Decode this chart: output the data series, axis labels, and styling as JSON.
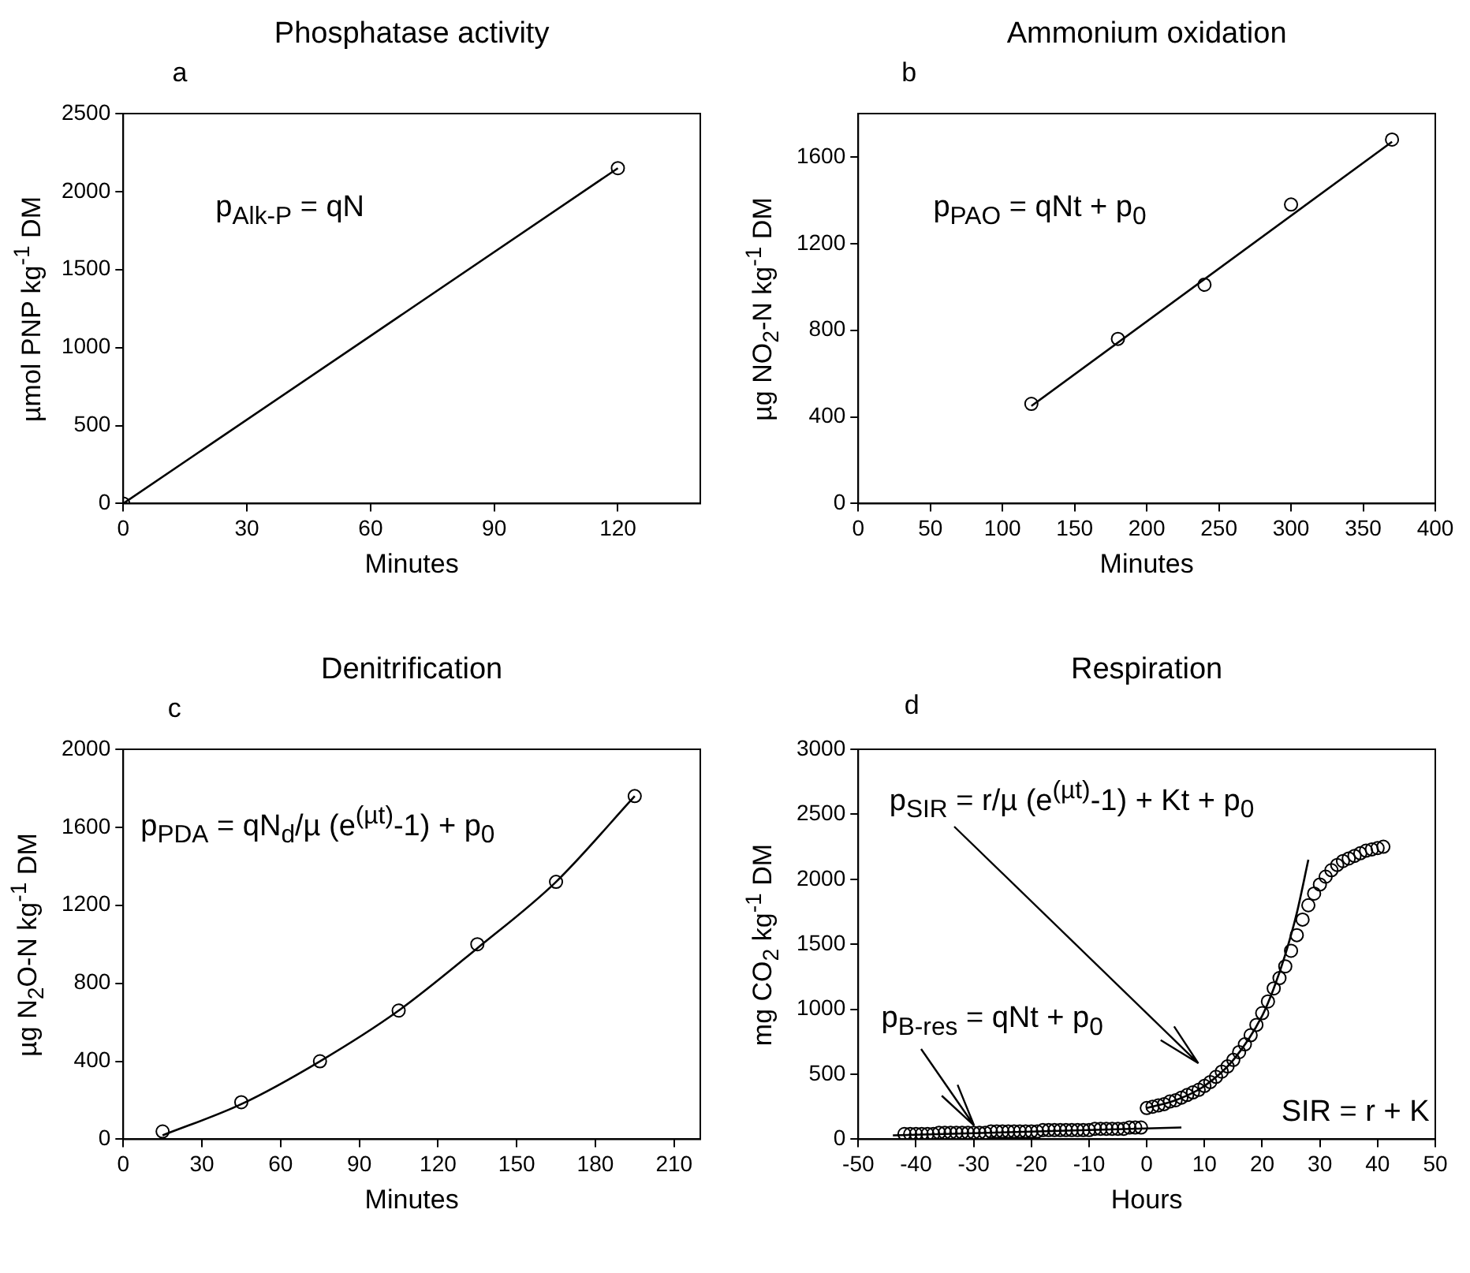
{
  "chart_data": [
    {
      "type": "scatter",
      "title": "Phosphatase activity",
      "xlabel": "Minutes",
      "ylabel": "µmol PNP kg$^{-1}$ DM",
      "annotations": [
        "a",
        "p$_{Alk-P}$ = qN"
      ],
      "xlim": [
        0,
        140
      ],
      "xticks": [
        0,
        30,
        60,
        90,
        120
      ],
      "ylim": [
        0,
        2500
      ],
      "yticks": [
        0,
        500,
        1000,
        1500,
        2000,
        2500
      ],
      "grid": false,
      "legend": false,
      "marker": "circle",
      "series": [
        {
          "type": "scatter",
          "color": "#000000",
          "x": [
            0,
            120
          ],
          "values": [
            0,
            2150
          ]
        },
        {
          "type": "line",
          "marker": "none",
          "color": "#000000",
          "x": [
            0,
            120
          ],
          "values": [
            0,
            2150
          ]
        }
      ]
    },
    {
      "type": "scatter",
      "title": "Ammonium oxidation",
      "xlabel": "Minutes",
      "ylabel": "µg NO$_{2}$-N kg$^{-1}$ DM",
      "annotations": [
        "b",
        "p$_{PAO}$ =  qNt + p$_{0}$"
      ],
      "xlim": [
        0,
        400
      ],
      "xticks": [
        0,
        50,
        100,
        150,
        200,
        250,
        300,
        350,
        400
      ],
      "ylim": [
        0,
        1800
      ],
      "yticks": [
        0,
        400,
        800,
        1200,
        1600
      ],
      "grid": false,
      "legend": false,
      "marker": "circle",
      "series": [
        {
          "type": "scatter",
          "color": "#000000",
          "x": [
            120,
            180,
            240,
            300,
            370
          ],
          "values": [
            460,
            760,
            1010,
            1380,
            1680
          ]
        },
        {
          "type": "line",
          "marker": "none",
          "color": "#000000",
          "x": [
            120,
            370
          ],
          "values": [
            450,
            1670
          ]
        }
      ]
    },
    {
      "type": "scatter",
      "title": "Denitrification",
      "xlabel": "Minutes",
      "ylabel": "µg N$_{2}$O-N kg$^{-1}$ DM",
      "annotations": [
        "c",
        "p$_{PDA}$ = qN$_{d}$/µ (e$^{(µt)}$-1) + p$_{0}$"
      ],
      "xlim": [
        0,
        220
      ],
      "xticks": [
        0,
        30,
        60,
        90,
        120,
        150,
        180,
        210
      ],
      "ylim": [
        0,
        2000
      ],
      "yticks": [
        0,
        400,
        800,
        1200,
        1600,
        2000
      ],
      "grid": false,
      "legend": false,
      "marker": "circle",
      "series": [
        {
          "type": "scatter",
          "color": "#000000",
          "x": [
            15,
            45,
            75,
            105,
            135,
            165,
            195
          ],
          "values": [
            40,
            190,
            400,
            660,
            1000,
            1320,
            1760
          ]
        },
        {
          "type": "line",
          "marker": "none",
          "color": "#000000",
          "x": [
            15,
            45,
            75,
            105,
            135,
            165,
            195
          ],
          "values": [
            20,
            180,
            400,
            660,
            980,
            1320,
            1760
          ]
        }
      ]
    },
    {
      "type": "scatter",
      "title": "Respiration",
      "xlabel": "Hours",
      "ylabel": "mg CO$_{2}$ kg$^{-1}$ DM",
      "annotations": [
        "d",
        "p$_{SIR}$ = r/µ (e$^{(µt)}$-1) + Kt + p$_{0}$",
        {
          "text": "p$_{B-res}$ =  qNt + p$_{0}$",
          "x": -30,
          "y": 100
        },
        "SIR = r + K"
      ],
      "xlim": [
        -50,
        50
      ],
      "xticks": [
        -50,
        -40,
        -30,
        -20,
        -10,
        0,
        10,
        20,
        30,
        40,
        50
      ],
      "ylim": [
        0,
        3000
      ],
      "yticks": [
        0,
        500,
        1000,
        1500,
        2000,
        2500,
        3000
      ],
      "grid": false,
      "legend": false,
      "marker": "circle",
      "series": [
        {
          "type": "scatter",
          "color": "#000000",
          "x": [
            -42,
            -41,
            -40,
            -39,
            -38,
            -37,
            -36,
            -35,
            -34,
            -33,
            -32,
            -31,
            -30,
            -29,
            -28,
            -27,
            -26,
            -25,
            -24,
            -23,
            -22,
            -21,
            -20,
            -19,
            -18,
            -17,
            -16,
            -15,
            -14,
            -13,
            -12,
            -11,
            -10,
            -9,
            -8,
            -7,
            -6,
            -5,
            -4,
            -3,
            -2,
            -1,
            0,
            1,
            2,
            3,
            4,
            5,
            6,
            7,
            8,
            9,
            10,
            11,
            12,
            13,
            14,
            15,
            16,
            17,
            18,
            19,
            20,
            21,
            22,
            23,
            24,
            25,
            26,
            27,
            28,
            29,
            30,
            31,
            32,
            33,
            34,
            35,
            36,
            37,
            38,
            39,
            40,
            41
          ],
          "values": [
            40,
            40,
            40,
            40,
            40,
            40,
            50,
            50,
            50,
            50,
            50,
            50,
            50,
            50,
            50,
            60,
            60,
            60,
            60,
            60,
            60,
            60,
            60,
            60,
            70,
            70,
            70,
            70,
            70,
            70,
            70,
            70,
            70,
            80,
            80,
            80,
            80,
            80,
            80,
            90,
            90,
            90,
            240,
            250,
            260,
            270,
            290,
            300,
            320,
            340,
            360,
            380,
            410,
            440,
            480,
            520,
            560,
            610,
            670,
            730,
            800,
            880,
            970,
            1060,
            1160,
            1240,
            1330,
            1450,
            1570,
            1690,
            1800,
            1890,
            1960,
            2020,
            2070,
            2110,
            2140,
            2160,
            2180,
            2200,
            2220,
            2230,
            2240,
            2250
          ]
        },
        {
          "type": "line",
          "marker": "none",
          "color": "#000000",
          "x": [
            -44,
            6
          ],
          "values": [
            30,
            90
          ]
        },
        {
          "type": "line",
          "marker": "none",
          "color": "#000000",
          "x": [
            0,
            5,
            10,
            15,
            20,
            22,
            24,
            26,
            28
          ],
          "values": [
            240,
            300,
            410,
            610,
            950,
            1160,
            1420,
            1740,
            2150
          ]
        }
      ]
    }
  ]
}
